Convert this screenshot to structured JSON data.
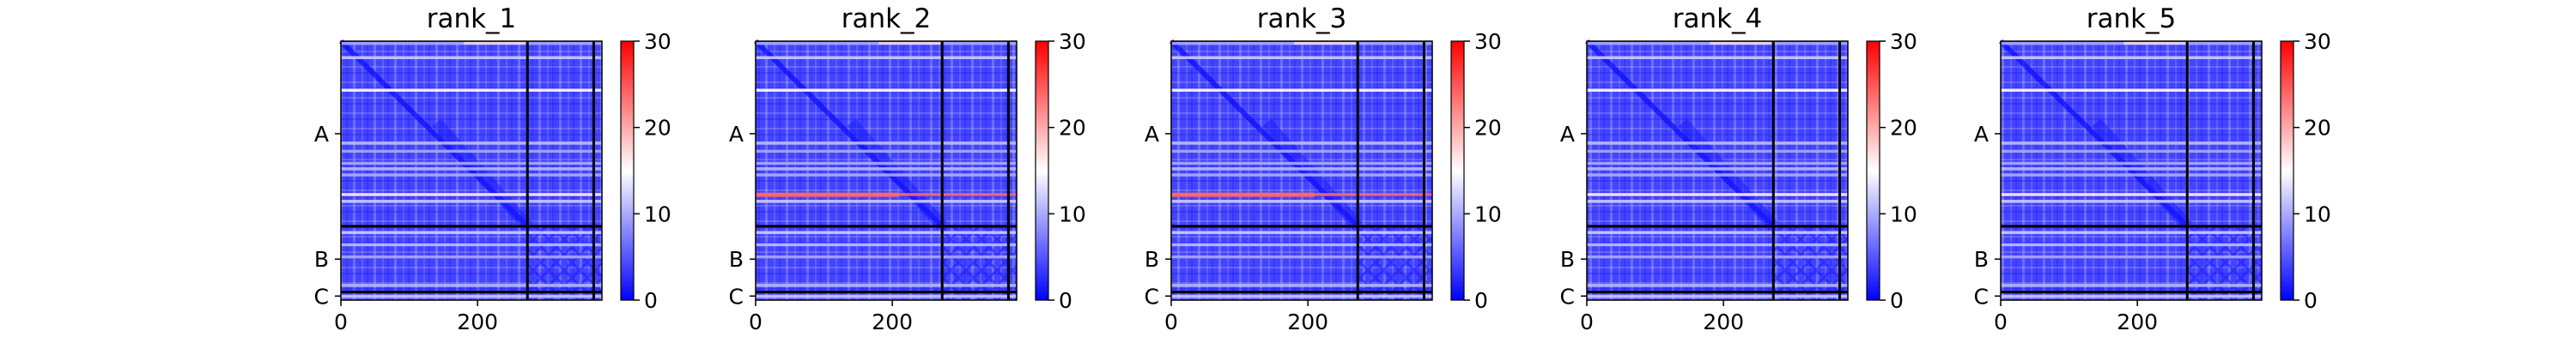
{
  "chart_data": [
    {
      "type": "heatmap",
      "title": "rank_1",
      "xticks": [
        "0",
        "200"
      ],
      "chain_labels": [
        "A",
        "B",
        "C"
      ],
      "colorbar_ticks": [
        "0",
        "10",
        "20",
        "30"
      ],
      "clim": [
        0,
        30
      ],
      "colormap": "bwr",
      "band_max": 16
    },
    {
      "type": "heatmap",
      "title": "rank_2",
      "xticks": [
        "0",
        "200"
      ],
      "chain_labels": [
        "A",
        "B",
        "C"
      ],
      "colorbar_ticks": [
        "0",
        "10",
        "20",
        "30"
      ],
      "clim": [
        0,
        30
      ],
      "colormap": "bwr",
      "band_max": 24
    },
    {
      "type": "heatmap",
      "title": "rank_3",
      "xticks": [
        "0",
        "200"
      ],
      "chain_labels": [
        "A",
        "B",
        "C"
      ],
      "colorbar_ticks": [
        "0",
        "10",
        "20",
        "30"
      ],
      "clim": [
        0,
        30
      ],
      "colormap": "bwr",
      "band_max": 24
    },
    {
      "type": "heatmap",
      "title": "rank_4",
      "xticks": [
        "0",
        "200"
      ],
      "chain_labels": [
        "A",
        "B",
        "C"
      ],
      "colorbar_ticks": [
        "0",
        "10",
        "20",
        "30"
      ],
      "clim": [
        0,
        30
      ],
      "colormap": "bwr",
      "band_max": 16
    },
    {
      "type": "heatmap",
      "title": "rank_5",
      "xticks": [
        "0",
        "200"
      ],
      "chain_labels": [
        "A",
        "B",
        "C"
      ],
      "colorbar_ticks": [
        "0",
        "10",
        "20",
        "30"
      ],
      "clim": [
        0,
        30
      ],
      "colormap": "bwr",
      "band_max": 16
    }
  ],
  "colors": {
    "low": "#0000ff",
    "mid": "#ffffff",
    "high": "#ff0000",
    "divider": "#000000"
  }
}
